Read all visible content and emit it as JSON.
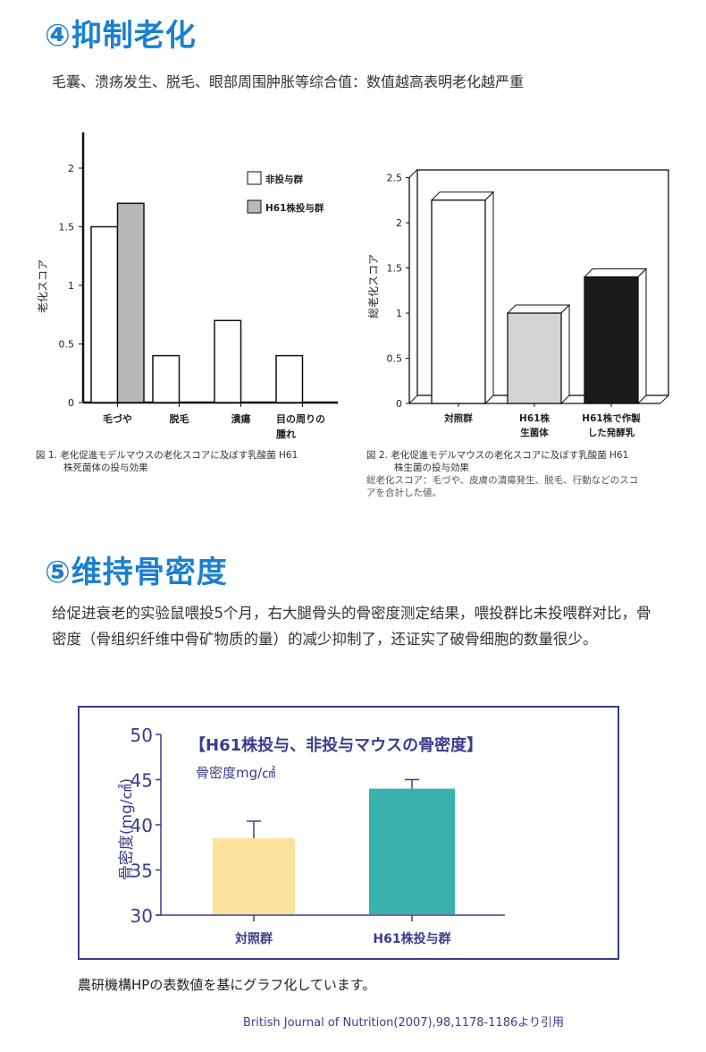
{
  "section4": {
    "title": "④抑制老化",
    "subtitle": "毛囊、溃疡发生、脱毛、眼部周围肿胀等综合值：数值越高表明老化越严重"
  },
  "section5": {
    "title": "⑤维持骨密度",
    "paragraph": "给促进衰老的实验鼠喂投5个月，右大腿骨头的骨密度测定结果，喂投群比未投喂群对比，骨密度（骨组织纤维中骨矿物质的量）的减少抑制了，还证实了破骨细胞的数量很少。"
  },
  "chart_data": [
    {
      "type": "bar",
      "title": "",
      "ylabel": "老化スコア",
      "ylim": [
        0,
        2.3
      ],
      "yticks": [
        "0",
        "0.5",
        "1",
        "1.5",
        "2"
      ],
      "categories": [
        "毛づや",
        "脱毛",
        "潰瘍",
        "目の周りの腫れ"
      ],
      "category_lines": [
        [
          "毛づや"
        ],
        [
          "脱毛"
        ],
        [
          "潰瘍"
        ],
        [
          "目の周りの",
          "腫れ"
        ]
      ],
      "series": [
        {
          "name": "非投与群",
          "color": "#ffffff",
          "values": [
            1.5,
            0.4,
            0.7,
            0.4
          ]
        },
        {
          "name": "H61株投与群",
          "color": "#b8b8b8",
          "values": [
            1.7,
            null,
            null,
            null
          ]
        }
      ],
      "legend_placement": "top-right",
      "caption": [
        "図 1. 老化促進モデルマウスの老化スコアに及ぼす乳酸菌 H61",
        "株死菌体の投与効果"
      ]
    },
    {
      "type": "bar",
      "title": "",
      "ylabel": "総老化スコア",
      "ylim": [
        0,
        2.5
      ],
      "yticks": [
        "0",
        "0.5",
        "1",
        "1.5",
        "2",
        "2.5"
      ],
      "categories": [
        "対照群",
        "H61株生菌体",
        "H61株で作製した発酵乳"
      ],
      "category_lines": [
        [
          "対照群"
        ],
        [
          "H61株",
          "生菌体"
        ],
        [
          "H61株で作製",
          "した発酵乳"
        ]
      ],
      "values": [
        2.25,
        1.0,
        1.4
      ],
      "colors": [
        "#ffffff",
        "#d4d4d4",
        "#1a1a1a"
      ],
      "caption": [
        "図 2. 老化促進モデルマウスの老化スコアに及ぼす乳酸菌 H61",
        "株生菌の投与効果"
      ],
      "note": [
        "総老化スコア：毛づや、皮膚の潰瘍発生、脱毛、行動などのスコ",
        "アを合計した値。"
      ]
    },
    {
      "type": "bar",
      "title": "【H61株投与、非投与マウスの骨密度】",
      "unit_label": "骨密度mg/㎠",
      "ylabel": "骨密度(mg/㎠)",
      "ylim": [
        30,
        50
      ],
      "yticks": [
        "30",
        "35",
        "40",
        "45",
        "50"
      ],
      "categories": [
        "対照群",
        "H61株投与群"
      ],
      "values": [
        38.5,
        44.0
      ],
      "error_upper": [
        40.4,
        45.0
      ],
      "colors": [
        "#fde29c",
        "#39b2ae"
      ],
      "axis_color": "#3b3d8e"
    }
  ],
  "footer": {
    "note": "農研機構HPの表数値を基にグラフ化しています。",
    "citation": "British Journal of Nutrition(2007),98,1178-1186より引用"
  }
}
